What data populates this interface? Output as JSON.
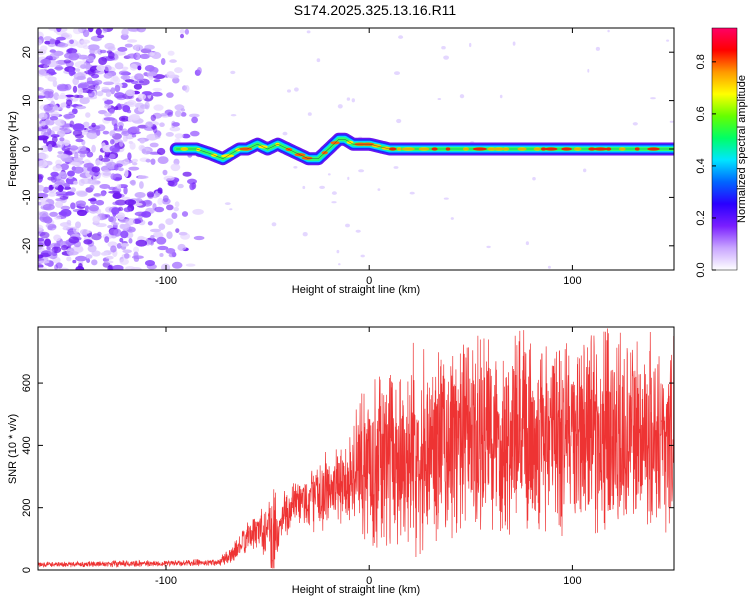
{
  "title": "S174.2025.325.13.16.R11",
  "chart_data": [
    {
      "type": "heatmap",
      "name": "spectrogram",
      "xlabel": "Height of straight line (km)",
      "ylabel": "Frequency (Hz)",
      "xlim": [
        -163,
        150
      ],
      "ylim": [
        -25,
        25
      ],
      "xticks": [
        -100,
        0,
        100
      ],
      "yticks": [
        -20,
        -10,
        0,
        10,
        20
      ],
      "signal_start_x": -95,
      "noise_region_x": [
        -163,
        -80
      ],
      "ridge": {
        "x": [
          -95,
          -85,
          -78,
          -72,
          -68,
          -64,
          -60,
          -55,
          -50,
          -45,
          -40,
          -35,
          -30,
          -25,
          -20,
          -15,
          -12,
          -8,
          -5,
          0,
          10,
          20,
          40,
          60,
          80,
          100,
          120,
          150
        ],
        "freq": [
          0,
          0,
          -1,
          -2,
          -1,
          0,
          0,
          1,
          0,
          1,
          0,
          -1,
          -2,
          -2,
          0,
          2,
          2,
          1,
          1,
          1,
          0,
          0,
          0,
          0,
          0,
          0,
          0,
          0
        ]
      },
      "colorbar": {
        "label": "Normalized spectral amplitude",
        "range": [
          0.0,
          0.93
        ],
        "ticks": [
          0.0,
          0.2,
          0.4,
          0.6,
          0.8
        ],
        "tick_labels": [
          "0.0",
          "0.2",
          "0.4",
          "0.6",
          "0.8"
        ],
        "colors": [
          "#ffffff",
          "#c9a6ff",
          "#7a1fff",
          "#2a00ff",
          "#0066ff",
          "#00e6ff",
          "#00ff66",
          "#66ff00",
          "#ffff00",
          "#ff9900",
          "#ff0000",
          "#ff0066"
        ]
      }
    },
    {
      "type": "line",
      "name": "snr",
      "xlabel": "Height of straight line (km)",
      "ylabel": "SNR (10 * v/v)",
      "xlim": [
        -163,
        150
      ],
      "ylim": [
        0,
        780
      ],
      "xticks": [
        -100,
        0,
        100
      ],
      "yticks": [
        0,
        200,
        400,
        600
      ],
      "color": "#ee3333",
      "envelope": {
        "x": [
          -163,
          -120,
          -90,
          -75,
          -68,
          -62,
          -55,
          -50,
          -47,
          -45,
          -42,
          -35,
          -25,
          -15,
          -10,
          -5,
          0,
          10,
          20,
          30,
          40,
          55,
          70,
          90,
          110,
          130,
          150
        ],
        "base": [
          18,
          20,
          22,
          25,
          45,
          90,
          130,
          140,
          130,
          110,
          180,
          210,
          240,
          270,
          290,
          330,
          340,
          360,
          380,
          400,
          410,
          420,
          430,
          440,
          440,
          440,
          430
        ],
        "amp": [
          10,
          12,
          12,
          14,
          30,
          50,
          70,
          110,
          300,
          60,
          90,
          100,
          120,
          150,
          190,
          240,
          300,
          330,
          350,
          360,
          370,
          380,
          380,
          380,
          380,
          370,
          360
        ]
      }
    }
  ]
}
